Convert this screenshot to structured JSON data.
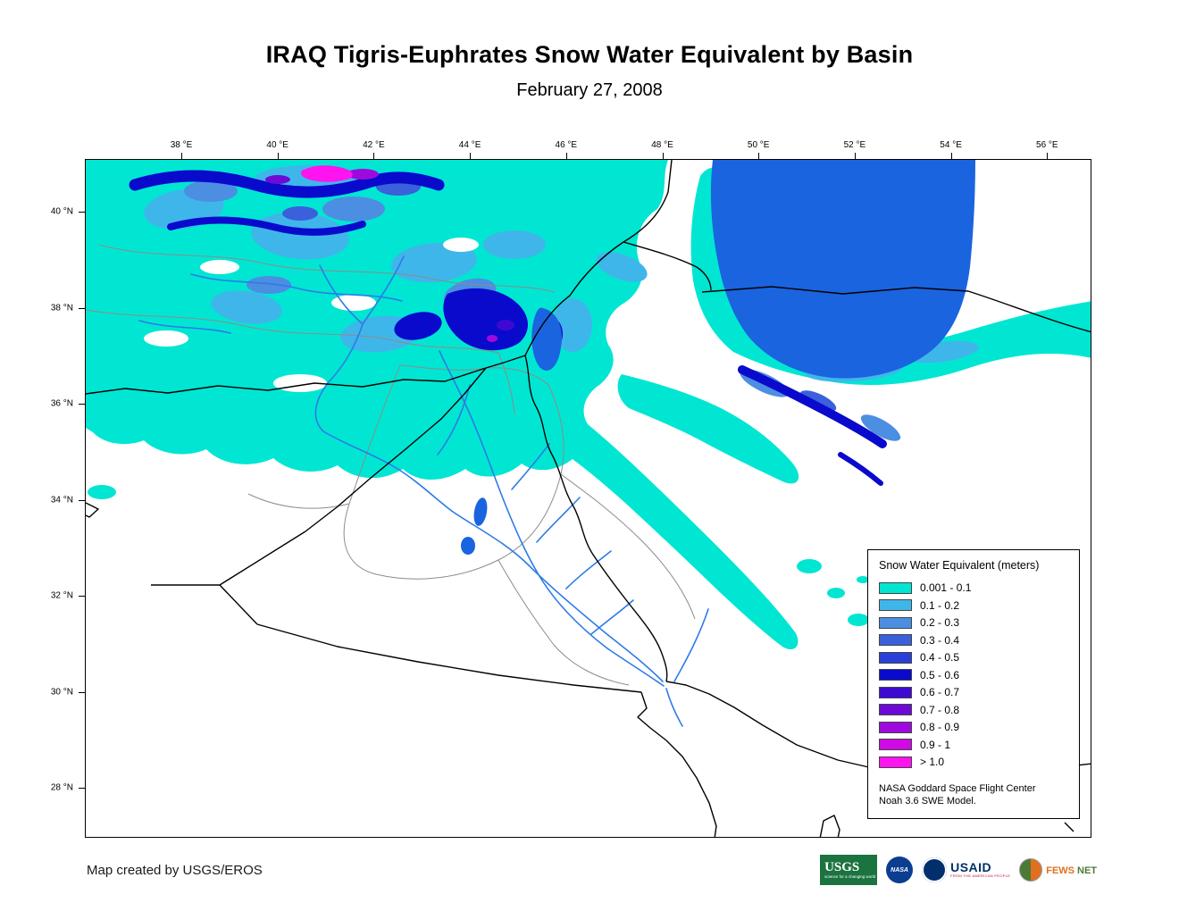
{
  "title": "IRAQ Tigris-Euphrates Snow Water Equivalent by Basin",
  "subtitle": "February 27, 2008",
  "axes": {
    "lon": [
      "38 °E",
      "40 °E",
      "42 °E",
      "44 °E",
      "46 °E",
      "48 °E",
      "50 °E",
      "52 °E",
      "54 °E",
      "56 °E"
    ],
    "lat": [
      "40 °N",
      "38 °N",
      "36 °N",
      "34 °N",
      "32 °N",
      "30 °N",
      "28 °N"
    ]
  },
  "legend": {
    "title": "Snow Water Equivalent (meters)",
    "items": [
      {
        "label": "0.001 - 0.1",
        "color": "#00E6D2"
      },
      {
        "label": "0.1 - 0.2",
        "color": "#3FB6EA"
      },
      {
        "label": "0.2 - 0.3",
        "color": "#4C8EE2"
      },
      {
        "label": "0.3 - 0.4",
        "color": "#3A60DC"
      },
      {
        "label": "0.4 - 0.5",
        "color": "#2A3ED8"
      },
      {
        "label": "0.5 - 0.6",
        "color": "#0A0ACD"
      },
      {
        "label": "0.6 - 0.7",
        "color": "#3E0AD2"
      },
      {
        "label": "0.7 - 0.8",
        "color": "#6E0AD8"
      },
      {
        "label": "0.8 - 0.9",
        "color": "#9E0ADE"
      },
      {
        "label": "0.9 - 1",
        "color": "#CF0AE4"
      },
      {
        "label": "> 1.0",
        "color": "#FF14F0"
      }
    ],
    "source_line1": "NASA Goddard Space Flight Center",
    "source_line2": "Noah 3.6 SWE Model."
  },
  "footer": {
    "credit": "Map created by USGS/EROS",
    "logos": {
      "usgs": {
        "label": "USGS",
        "tagline": "science for a changing world"
      },
      "nasa": {
        "label": "NASA"
      },
      "usaid": {
        "label": "USAID",
        "tagline": "FROM THE AMERICAN PEOPLE"
      },
      "fewsnet": {
        "label1": "FEWS",
        "label2": "NET"
      }
    }
  },
  "colors": {
    "water": "#1A64DF",
    "river": "#2E7BE8",
    "border": "#000000",
    "basin": "#8C8C8C",
    "usgs-green": "#1B7340",
    "nasa-blue": "#0B3D91",
    "usaid-blue": "#002F6C",
    "usaid-red": "#BA0C2F",
    "fews-orange": "#E07020",
    "fews-green": "#4C7A34"
  }
}
